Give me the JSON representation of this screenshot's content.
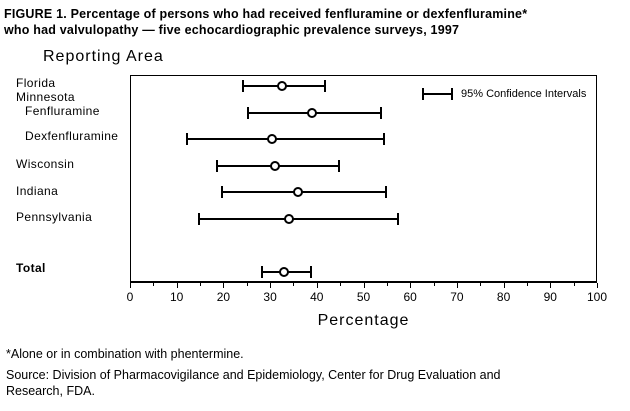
{
  "figure": {
    "title_line1": "FIGURE 1. Percentage of persons who had received fenfluramine or dexfenfluramine*",
    "title_line2": "who had valvulopathy — five echocardiographic prevalence surveys, 1997",
    "footnote": "*Alone or in combination with phentermine.",
    "source_line1": "Source: Division of Pharmacovigilance and Epidemiology, Center for Drug Evaluation and",
    "source_line2": "Research, FDA."
  },
  "chart_data": {
    "type": "scatter",
    "subtype": "horizontal-error-bar-dot-plot",
    "title": "Percentage of persons who had received fenfluramine or dexfenfluramine who had valvulopathy — five echocardiographic prevalence surveys, 1997",
    "y_axis_header": "Reporting Area",
    "xlabel": "Percentage",
    "xlim": [
      0,
      100
    ],
    "x_major_ticks": [
      0,
      10,
      20,
      30,
      40,
      50,
      60,
      70,
      80,
      90,
      100
    ],
    "minor_tick_step": 5,
    "grid": false,
    "legend": "95% Confidence Intervals",
    "legend_position": "top-right-inside",
    "point_marker": "open-circle",
    "colors": {
      "foreground": "#000000",
      "background": "#ffffff"
    },
    "rows": [
      {
        "label": "Florida",
        "indent": false,
        "header": false,
        "bold": false,
        "value": 32.5,
        "ci_low": 24,
        "ci_high": 42
      },
      {
        "label": "Minnesota",
        "indent": false,
        "header": true,
        "bold": false,
        "value": null,
        "ci_low": null,
        "ci_high": null
      },
      {
        "label": "Fenfluramine",
        "indent": true,
        "header": false,
        "bold": false,
        "value": 39,
        "ci_low": 25,
        "ci_high": 54
      },
      {
        "label": "Dexfenfluramine",
        "indent": true,
        "header": false,
        "bold": false,
        "value": 30.5,
        "ci_low": 12,
        "ci_high": 54.5
      },
      {
        "label": "Wisconsin",
        "indent": false,
        "header": false,
        "bold": false,
        "value": 31,
        "ci_low": 18.5,
        "ci_high": 45
      },
      {
        "label": "Indiana",
        "indent": false,
        "header": false,
        "bold": false,
        "value": 36,
        "ci_low": 19.5,
        "ci_high": 55
      },
      {
        "label": "Pennsylvania",
        "indent": false,
        "header": false,
        "bold": false,
        "value": 34,
        "ci_low": 14.5,
        "ci_high": 57.5
      },
      {
        "label": "Total",
        "indent": false,
        "header": false,
        "bold": true,
        "value": 33,
        "ci_low": 28,
        "ci_high": 39
      }
    ]
  }
}
